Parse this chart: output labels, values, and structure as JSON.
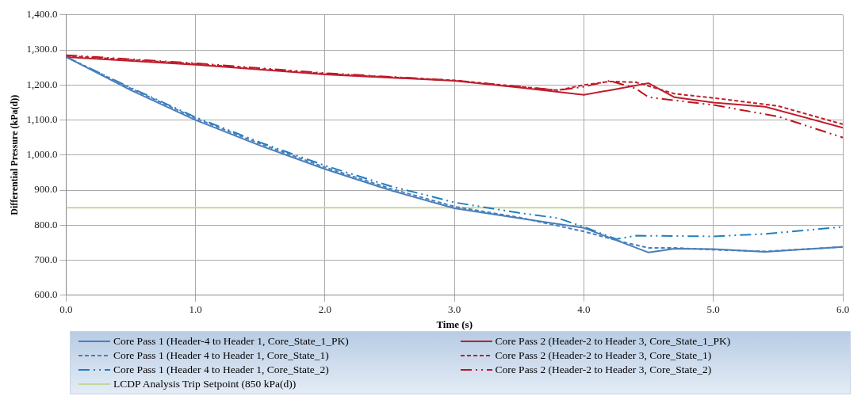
{
  "chart_data": {
    "type": "line",
    "xlabel": "Time (s)",
    "ylabel": "Differential Pressure (kPa(d))",
    "xlim": [
      0,
      6
    ],
    "xticks": [
      {
        "value": 0,
        "label": "0.0"
      },
      {
        "value": 1,
        "label": "1.0"
      },
      {
        "value": 2,
        "label": "2.0"
      },
      {
        "value": 3,
        "label": "3.0"
      },
      {
        "value": 4,
        "label": "4.0"
      },
      {
        "value": 5,
        "label": "5.0"
      },
      {
        "value": 6,
        "label": "6.0"
      }
    ],
    "ylim": [
      600,
      1400
    ],
    "yticks": [
      {
        "value": 600,
        "label": "600.0"
      },
      {
        "value": 700,
        "label": "700.0"
      },
      {
        "value": 800,
        "label": "800.0"
      },
      {
        "value": 900,
        "label": "900.0"
      },
      {
        "value": 1000,
        "label": "1,000.0"
      },
      {
        "value": 1100,
        "label": "1,100.0"
      },
      {
        "value": 1200,
        "label": "1,200.0"
      },
      {
        "value": 1300,
        "label": "1,300.0"
      },
      {
        "value": 1400,
        "label": "1,400.0"
      }
    ],
    "grid": true,
    "legend": "bottom",
    "marker": "none",
    "series": [
      {
        "name": "Core Pass 1 (Header-4 to Header 1, Core_State_1_PK)",
        "color": "#4a7ebb",
        "line_style": "solid",
        "x": [
          0,
          0.5,
          1,
          1.5,
          2,
          2.5,
          3,
          3.5,
          4,
          4.5,
          4.7,
          5,
          5.4,
          6
        ],
        "values": [
          1280,
          1185,
          1100,
          1027,
          960,
          900,
          848,
          820,
          792,
          722,
          733,
          732,
          724,
          738
        ]
      },
      {
        "name": "Core Pass 2 (Header-2 to Header 3, Core_State_1_PK)",
        "color": "#be1e2d",
        "line_style": "solid",
        "x": [
          0,
          1,
          2,
          3,
          3.5,
          4,
          4.2,
          4.5,
          4.7,
          5,
          5.4,
          6
        ],
        "values": [
          1280,
          1258,
          1230,
          1212,
          1193,
          1172,
          1185,
          1205,
          1165,
          1150,
          1138,
          1078
        ]
      },
      {
        "name": "Core Pass 1 (Header 4 to Header 1, Core_State_1)",
        "color": "#4a7ebb",
        "line_style": "dashed",
        "x": [
          0,
          0.5,
          1,
          1.5,
          2,
          2.5,
          3,
          3.5,
          4,
          4.3,
          4.5,
          4.7,
          5,
          5.4,
          6
        ],
        "values": [
          1280,
          1190,
          1105,
          1032,
          965,
          905,
          853,
          822,
          782,
          752,
          735,
          735,
          730,
          725,
          738
        ]
      },
      {
        "name": "Core Pass 2 (Header-2 to Header 3, Core_State_1)",
        "color": "#be1e2d",
        "line_style": "dashed",
        "x": [
          0,
          1,
          2,
          3,
          3.5,
          3.8,
          4,
          4.2,
          4.4,
          4.7,
          5,
          5.5,
          6
        ],
        "values": [
          1283,
          1260,
          1232,
          1213,
          1195,
          1185,
          1200,
          1210,
          1208,
          1175,
          1163,
          1140,
          1088
        ]
      },
      {
        "name": "Core Pass 1 (Header 4 to Header 1, Core_State_2)",
        "color": "#1f7fc0",
        "line_style": "dashdot",
        "x": [
          0,
          0.5,
          1,
          1.5,
          2,
          2.5,
          3,
          3.5,
          3.8,
          4,
          4.25,
          4.4,
          5,
          5.4,
          6
        ],
        "values": [
          1280,
          1192,
          1108,
          1036,
          970,
          912,
          865,
          835,
          820,
          795,
          760,
          770,
          768,
          775,
          795
        ]
      },
      {
        "name": "Core Pass 2 (Header-2 to Header 3, Core_State_2)",
        "color": "#c0141e",
        "line_style": "dashdot",
        "x": [
          0,
          1,
          2,
          3,
          3.8,
          4,
          4.2,
          4.4,
          4.5,
          5,
          5.5,
          6
        ],
        "values": [
          1285,
          1262,
          1234,
          1213,
          1185,
          1195,
          1212,
          1190,
          1165,
          1143,
          1110,
          1050
        ]
      },
      {
        "name": "LCDP Analysis Trip Setpoint (850 kPa(d))",
        "color": "#c4d79b",
        "line_style": "solid",
        "x": [
          0,
          6
        ],
        "values": [
          850,
          850
        ]
      }
    ]
  }
}
